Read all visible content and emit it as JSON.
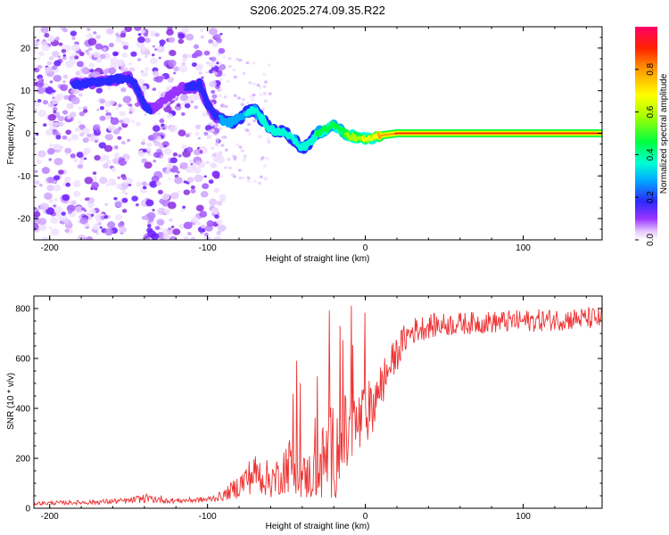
{
  "title": "S206.2025.274.09.35.R22",
  "chart_data": [
    {
      "type": "heatmap",
      "title": "S206.2025.274.09.35.R22",
      "xlabel": "Height of straight line (km)",
      "ylabel": "Frequency (Hz)",
      "xlim": [
        -210,
        150
      ],
      "ylim": [
        -25,
        25
      ],
      "x_ticks": [
        -200,
        -100,
        0,
        100
      ],
      "x_tick_labels": [
        "-200",
        "-100",
        "0",
        "100"
      ],
      "y_ticks": [
        -20,
        -10,
        0,
        10,
        20
      ],
      "y_tick_labels": [
        "-20",
        "-10",
        "0",
        "10",
        "20"
      ],
      "colorbar": {
        "label": "Normalized spectral amplitude",
        "range": [
          0,
          1
        ],
        "ticks": [
          0.0,
          0.2,
          0.4,
          0.6,
          0.8
        ],
        "tick_labels": [
          "0.0",
          "0.2",
          "0.4",
          "0.6",
          "0.8"
        ]
      },
      "ridge": {
        "x": [
          -185,
          -170,
          -160,
          -150,
          -145,
          -140,
          -135,
          -120,
          -105,
          -100,
          -95,
          -90,
          -85,
          -80,
          -75,
          -70,
          -65,
          -60,
          -55,
          -50,
          -45,
          -40,
          -35,
          -30,
          -25,
          -20,
          -15,
          -10,
          -5,
          0,
          5,
          10,
          20,
          50,
          100,
          150
        ],
        "y": [
          11.5,
          12,
          12.5,
          13,
          11,
          6,
          5.5,
          10,
          11.5,
          7,
          4,
          3,
          2.5,
          3.5,
          5,
          5.5,
          3,
          1,
          0.5,
          0,
          -1.5,
          -3.5,
          -2,
          0,
          1,
          2,
          0.5,
          -0.5,
          -1,
          -1.5,
          -1,
          -0.5,
          0,
          0,
          0,
          0
        ],
        "amplitude": [
          0.22,
          0.2,
          0.22,
          0.24,
          0.18,
          0.2,
          0.18,
          0.15,
          0.22,
          0.2,
          0.24,
          0.3,
          0.32,
          0.35,
          0.36,
          0.36,
          0.4,
          0.42,
          0.42,
          0.4,
          0.38,
          0.4,
          0.42,
          0.46,
          0.5,
          0.52,
          0.55,
          0.6,
          0.65,
          0.7,
          0.75,
          0.82,
          0.9,
          0.92,
          0.92,
          0.92
        ]
      }
    },
    {
      "type": "line",
      "xlabel": "Height of straight line (km)",
      "ylabel": "SNR (10 * v/v)",
      "xlim": [
        -210,
        150
      ],
      "ylim": [
        0,
        850
      ],
      "x_ticks": [
        -200,
        -100,
        0,
        100
      ],
      "x_tick_labels": [
        "-200",
        "-100",
        "0",
        "100"
      ],
      "y_ticks": [
        0,
        200,
        400,
        600,
        800
      ],
      "y_tick_labels": [
        "0",
        "200",
        "400",
        "600",
        "800"
      ],
      "series": [
        {
          "name": "SNR",
          "color": "#ee3333",
          "x": [
            -210,
            -190,
            -170,
            -150,
            -140,
            -130,
            -120,
            -100,
            -90,
            -80,
            -75,
            -70,
            -65,
            -60,
            -55,
            -50,
            -45,
            -40,
            -35,
            -30,
            -25,
            -20,
            -15,
            -10,
            -5,
            0,
            5,
            10,
            15,
            20,
            25,
            30,
            40,
            60,
            80,
            100,
            120,
            140,
            150
          ],
          "y": [
            20,
            22,
            25,
            30,
            40,
            35,
            30,
            35,
            50,
            90,
            120,
            140,
            130,
            110,
            130,
            170,
            180,
            120,
            130,
            150,
            200,
            230,
            260,
            300,
            330,
            370,
            420,
            490,
            560,
            620,
            680,
            710,
            730,
            740,
            745,
            750,
            755,
            760,
            760
          ],
          "spread": [
            8,
            8,
            10,
            12,
            18,
            15,
            10,
            12,
            20,
            50,
            70,
            80,
            80,
            70,
            80,
            110,
            120,
            90,
            100,
            130,
            180,
            200,
            190,
            170,
            150,
            130,
            110,
            100,
            80,
            70,
            60,
            55,
            50,
            45,
            45,
            45,
            45,
            45,
            45
          ]
        }
      ]
    }
  ]
}
